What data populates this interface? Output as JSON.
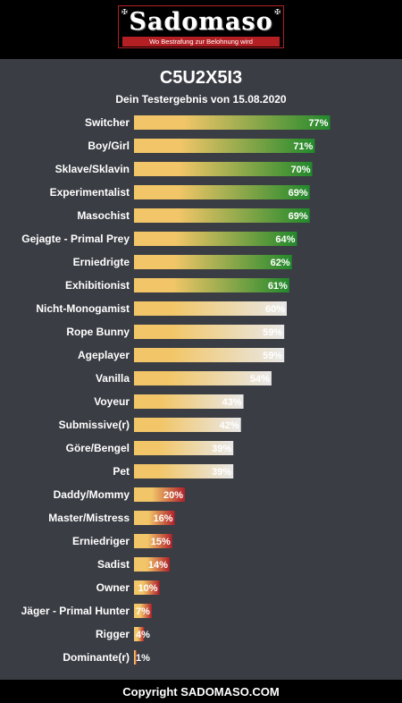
{
  "header": {
    "logo_text": "Sadomaso",
    "logo_tagline": "Wo Bestrafung zur Belohnung wird"
  },
  "footer": {
    "copyright": "Copyright SADOMASO.COM"
  },
  "colors": {
    "page_background": "#3a3d43",
    "bar_start": "#f2c668",
    "high_end": "#22892c",
    "mid_end": "#e8e8e8",
    "low_end": "#b0202a",
    "brand_red": "#b41f24"
  },
  "chart_data": {
    "type": "bar",
    "orientation": "horizontal",
    "title": "C5U2X5I3",
    "subtitle": "Dein Testergebnis von 15.08.2020",
    "xlim": [
      0,
      100
    ],
    "grid": false,
    "legend": "none",
    "categories": [
      "Switcher",
      "Boy/Girl",
      "Sklave/Sklavin",
      "Experimentalist",
      "Masochist",
      "Gejagte - Primal Prey",
      "Erniedrigte",
      "Exhibitionist",
      "Nicht-Monogamist",
      "Rope Bunny",
      "Ageplayer",
      "Vanilla",
      "Voyeur",
      "Submissive(r)",
      "Göre/Bengel",
      "Pet",
      "Daddy/Mommy",
      "Master/Mistress",
      "Erniedriger",
      "Sadist",
      "Owner",
      "Jäger - Primal Hunter",
      "Rigger",
      "Dominante(r)"
    ],
    "values": [
      77,
      71,
      70,
      69,
      69,
      64,
      62,
      61,
      60,
      59,
      59,
      54,
      43,
      42,
      39,
      39,
      20,
      16,
      15,
      14,
      10,
      7,
      4,
      1
    ],
    "value_labels": [
      "77%",
      "71%",
      "70%",
      "69%",
      "69%",
      "64%",
      "62%",
      "61%",
      "60%",
      "59%",
      "59%",
      "54%",
      "43%",
      "42%",
      "39%",
      "39%",
      "20%",
      "16%",
      "15%",
      "14%",
      "10%",
      "7%",
      "4%",
      "1%"
    ],
    "tiers": [
      "high",
      "high",
      "high",
      "high",
      "high",
      "high",
      "high",
      "high",
      "mid",
      "mid",
      "mid",
      "mid",
      "mid",
      "mid",
      "mid",
      "mid",
      "low",
      "low",
      "low",
      "low",
      "low",
      "low",
      "low",
      "low"
    ]
  }
}
